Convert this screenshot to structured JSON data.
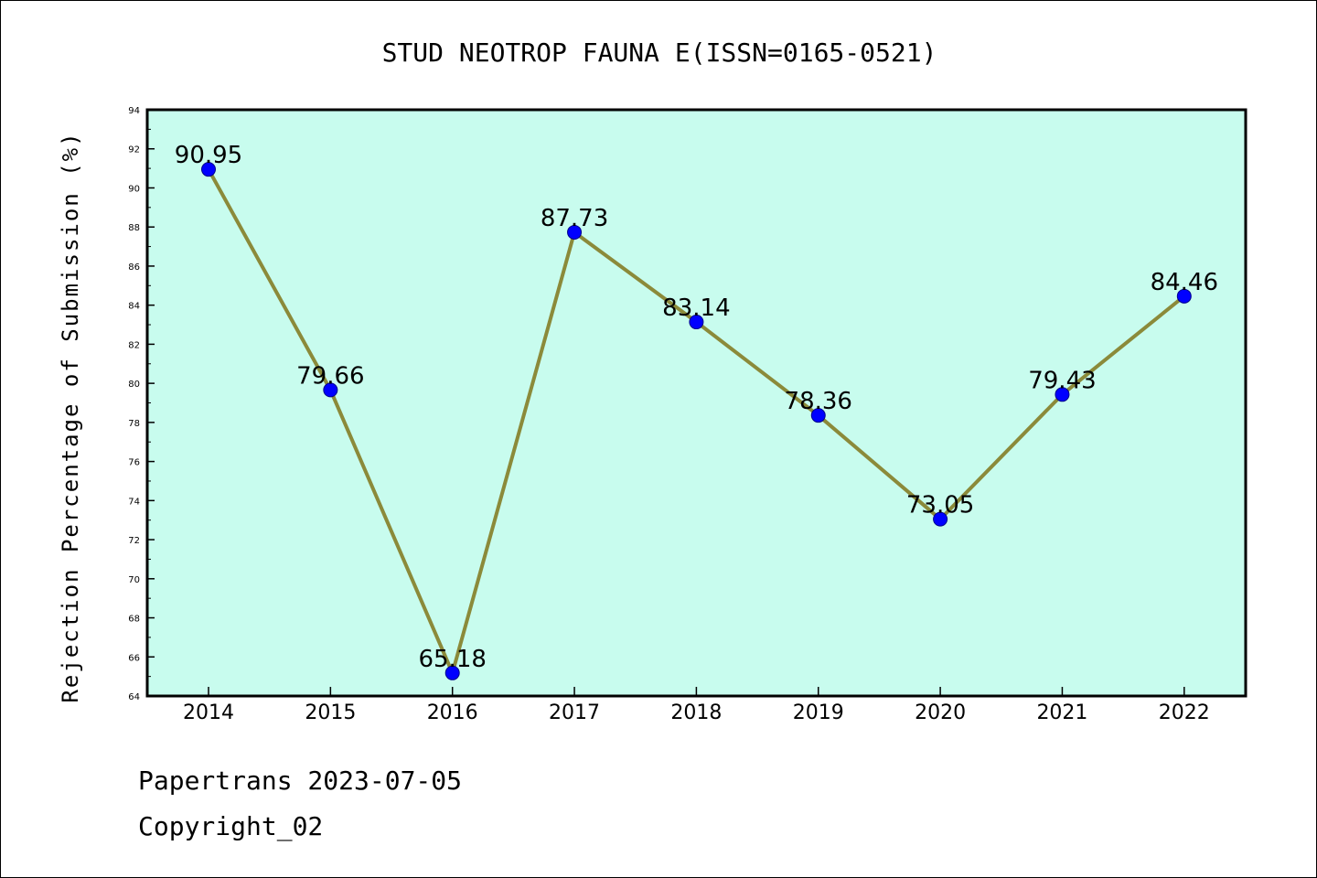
{
  "chart_data": {
    "type": "line",
    "title": "STUD NEOTROP FAUNA E(ISSN=0165-0521)",
    "xlabel": "",
    "ylabel": "Rejection Percentage of Submission (%)",
    "categories": [
      "2014",
      "2015",
      "2016",
      "2017",
      "2018",
      "2019",
      "2020",
      "2021",
      "2022"
    ],
    "values": [
      90.95,
      79.66,
      65.18,
      87.73,
      83.14,
      78.36,
      73.05,
      79.43,
      84.46
    ],
    "data_labels": [
      "90.95",
      "79.66",
      "65.18",
      "87.73",
      "83.14",
      "78.36",
      "73.05",
      "79.43",
      "84.46"
    ],
    "ylim": [
      64,
      94
    ],
    "y_ticks": [
      "64",
      "66",
      "68",
      "70",
      "72",
      "74",
      "76",
      "78",
      "80",
      "82",
      "84",
      "86",
      "88",
      "90",
      "92",
      "94"
    ],
    "grid": false,
    "legend": "none",
    "colors": {
      "plot_background": "#c8fcee",
      "line": "#8b8a3a",
      "marker": "#0000ff",
      "marker_edge": "#00008b"
    }
  },
  "footer": {
    "line1": "Papertrans 2023-07-05",
    "line2": "Copyright_02"
  }
}
